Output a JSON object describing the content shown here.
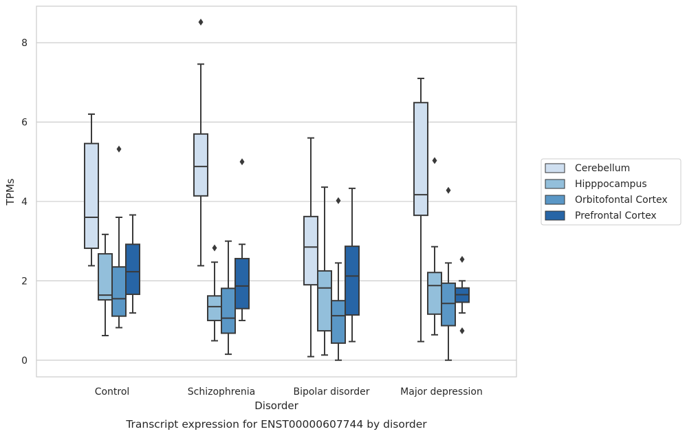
{
  "chart_data": {
    "type": "box",
    "title": "",
    "caption": "Transcript expression for ENST00000607744 by disorder",
    "xlabel": "Disorder",
    "ylabel": "TPMs",
    "ylim": [
      -0.42,
      8.92
    ],
    "yticks": [
      0,
      2,
      4,
      6,
      8
    ],
    "grid": "horizontal",
    "legend_position": "right",
    "categories": [
      "Control",
      "Schizophrenia",
      "Bipolar disorder",
      "Major depression"
    ],
    "series": [
      {
        "name": "Cerebellum",
        "color": "#cfdff0",
        "boxes": [
          {
            "whislo": 2.38,
            "q1": 2.82,
            "med": 3.6,
            "q3": 5.46,
            "whishi": 6.2,
            "fliers": []
          },
          {
            "whislo": 2.38,
            "q1": 4.14,
            "med": 4.88,
            "q3": 5.7,
            "whishi": 7.46,
            "fliers": [
              8.52
            ]
          },
          {
            "whislo": 0.09,
            "q1": 1.9,
            "med": 2.85,
            "q3": 3.62,
            "whishi": 5.6,
            "fliers": []
          },
          {
            "whislo": 0.47,
            "q1": 3.65,
            "med": 4.17,
            "q3": 6.49,
            "whishi": 7.1,
            "fliers": []
          }
        ]
      },
      {
        "name": "Hipppocampus",
        "color": "#93bfdb",
        "boxes": [
          {
            "whislo": 0.62,
            "q1": 1.52,
            "med": 1.64,
            "q3": 2.68,
            "whishi": 3.17,
            "fliers": []
          },
          {
            "whislo": 0.49,
            "q1": 1.0,
            "med": 1.35,
            "q3": 1.62,
            "whishi": 2.47,
            "fliers": [
              2.83
            ]
          },
          {
            "whislo": 0.13,
            "q1": 0.74,
            "med": 1.82,
            "q3": 2.25,
            "whishi": 4.36,
            "fliers": []
          },
          {
            "whislo": 0.64,
            "q1": 1.16,
            "med": 1.88,
            "q3": 2.21,
            "whishi": 2.86,
            "fliers": [
              5.03
            ]
          }
        ]
      },
      {
        "name": "Orbitofontal Cortex",
        "color": "#5a97c6",
        "boxes": [
          {
            "whislo": 0.82,
            "q1": 1.11,
            "med": 1.55,
            "q3": 2.35,
            "whishi": 3.6,
            "fliers": [
              5.32
            ]
          },
          {
            "whislo": 0.15,
            "q1": 0.68,
            "med": 1.06,
            "q3": 1.81,
            "whishi": 3.0,
            "fliers": []
          },
          {
            "whislo": 0.0,
            "q1": 0.43,
            "med": 1.12,
            "q3": 1.5,
            "whishi": 2.45,
            "fliers": [
              4.02
            ]
          },
          {
            "whislo": 0.0,
            "q1": 0.87,
            "med": 1.43,
            "q3": 1.94,
            "whishi": 2.45,
            "fliers": [
              4.28
            ]
          }
        ]
      },
      {
        "name": "Prefrontal Cortex",
        "color": "#2765a6",
        "boxes": [
          {
            "whislo": 1.19,
            "q1": 1.66,
            "med": 2.23,
            "q3": 2.92,
            "whishi": 3.66,
            "fliers": []
          },
          {
            "whislo": 1.0,
            "q1": 1.3,
            "med": 1.87,
            "q3": 2.56,
            "whishi": 2.92,
            "fliers": [
              5.0
            ]
          },
          {
            "whislo": 0.47,
            "q1": 1.14,
            "med": 2.12,
            "q3": 2.87,
            "whishi": 4.33,
            "fliers": []
          },
          {
            "whislo": 1.19,
            "q1": 1.46,
            "med": 1.65,
            "q3": 1.82,
            "whishi": 2.0,
            "fliers": [
              2.54,
              0.74
            ]
          }
        ]
      }
    ]
  },
  "style": {
    "edge_color": "#3a3a3a",
    "grid_color": "#cccccc",
    "spine_color": "#cccccc"
  }
}
